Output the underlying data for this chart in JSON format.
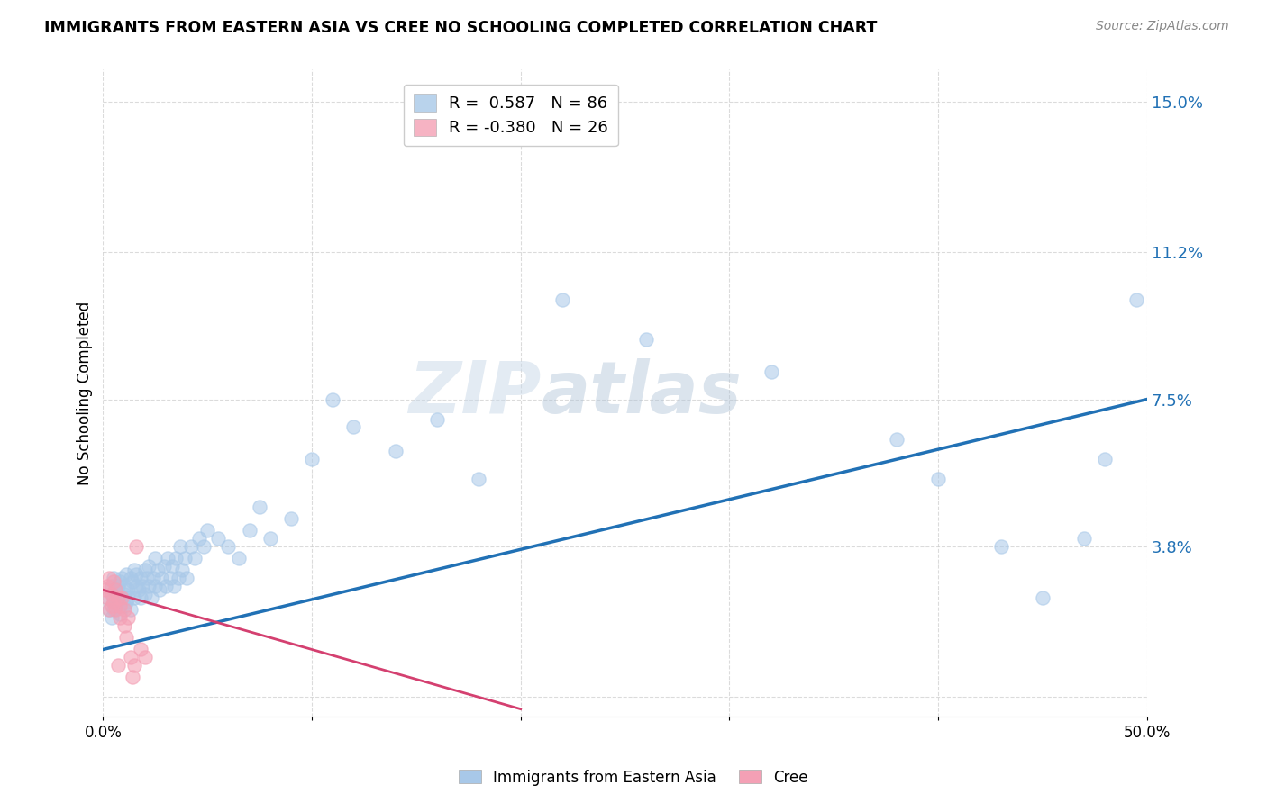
{
  "title": "IMMIGRANTS FROM EASTERN ASIA VS CREE NO SCHOOLING COMPLETED CORRELATION CHART",
  "source": "Source: ZipAtlas.com",
  "ylabel": "No Schooling Completed",
  "ylim": [
    -0.005,
    0.158
  ],
  "xlim": [
    0.0,
    0.5
  ],
  "blue_color": "#a8c8e8",
  "pink_color": "#f4a0b5",
  "blue_line_color": "#2171b5",
  "pink_line_color": "#d44070",
  "legend_blue_r": "R =  0.587",
  "legend_blue_n": "N = 86",
  "legend_pink_r": "R = -0.380",
  "legend_pink_n": "N = 26",
  "watermark_zip": "ZIP",
  "watermark_atlas": "atlas",
  "blue_line_x": [
    0.0,
    0.5
  ],
  "blue_line_y": [
    0.012,
    0.075
  ],
  "pink_line_x": [
    0.0,
    0.2
  ],
  "pink_line_y": [
    0.027,
    -0.003
  ],
  "blue_scatter_x": [
    0.002,
    0.003,
    0.004,
    0.004,
    0.005,
    0.005,
    0.005,
    0.006,
    0.006,
    0.007,
    0.007,
    0.007,
    0.008,
    0.008,
    0.009,
    0.009,
    0.01,
    0.01,
    0.01,
    0.011,
    0.011,
    0.012,
    0.012,
    0.013,
    0.013,
    0.014,
    0.015,
    0.015,
    0.016,
    0.016,
    0.017,
    0.018,
    0.018,
    0.019,
    0.02,
    0.02,
    0.021,
    0.022,
    0.022,
    0.023,
    0.024,
    0.025,
    0.025,
    0.026,
    0.027,
    0.028,
    0.029,
    0.03,
    0.031,
    0.032,
    0.033,
    0.034,
    0.035,
    0.036,
    0.037,
    0.038,
    0.039,
    0.04,
    0.042,
    0.044,
    0.046,
    0.048,
    0.05,
    0.055,
    0.06,
    0.065,
    0.07,
    0.075,
    0.08,
    0.09,
    0.1,
    0.11,
    0.12,
    0.14,
    0.16,
    0.18,
    0.22,
    0.26,
    0.32,
    0.38,
    0.4,
    0.43,
    0.45,
    0.47,
    0.48,
    0.495
  ],
  "blue_scatter_y": [
    0.025,
    0.022,
    0.028,
    0.02,
    0.03,
    0.025,
    0.022,
    0.027,
    0.023,
    0.028,
    0.024,
    0.026,
    0.029,
    0.021,
    0.03,
    0.025,
    0.028,
    0.023,
    0.026,
    0.031,
    0.024,
    0.027,
    0.025,
    0.03,
    0.022,
    0.029,
    0.032,
    0.025,
    0.028,
    0.031,
    0.027,
    0.03,
    0.025,
    0.028,
    0.032,
    0.026,
    0.03,
    0.028,
    0.033,
    0.025,
    0.03,
    0.028,
    0.035,
    0.032,
    0.027,
    0.03,
    0.033,
    0.028,
    0.035,
    0.03,
    0.033,
    0.028,
    0.035,
    0.03,
    0.038,
    0.032,
    0.035,
    0.03,
    0.038,
    0.035,
    0.04,
    0.038,
    0.042,
    0.04,
    0.038,
    0.035,
    0.042,
    0.048,
    0.04,
    0.045,
    0.06,
    0.075,
    0.068,
    0.062,
    0.07,
    0.055,
    0.1,
    0.09,
    0.082,
    0.065,
    0.055,
    0.038,
    0.025,
    0.04,
    0.06,
    0.1
  ],
  "pink_scatter_x": [
    0.001,
    0.002,
    0.002,
    0.003,
    0.003,
    0.004,
    0.004,
    0.005,
    0.005,
    0.006,
    0.006,
    0.007,
    0.007,
    0.008,
    0.008,
    0.009,
    0.01,
    0.01,
    0.011,
    0.012,
    0.013,
    0.014,
    0.015,
    0.016,
    0.018,
    0.02
  ],
  "pink_scatter_y": [
    0.027,
    0.028,
    0.025,
    0.03,
    0.022,
    0.026,
    0.023,
    0.029,
    0.024,
    0.027,
    0.022,
    0.025,
    0.008,
    0.023,
    0.02,
    0.025,
    0.018,
    0.022,
    0.015,
    0.02,
    0.01,
    0.005,
    0.008,
    0.038,
    0.012,
    0.01
  ]
}
